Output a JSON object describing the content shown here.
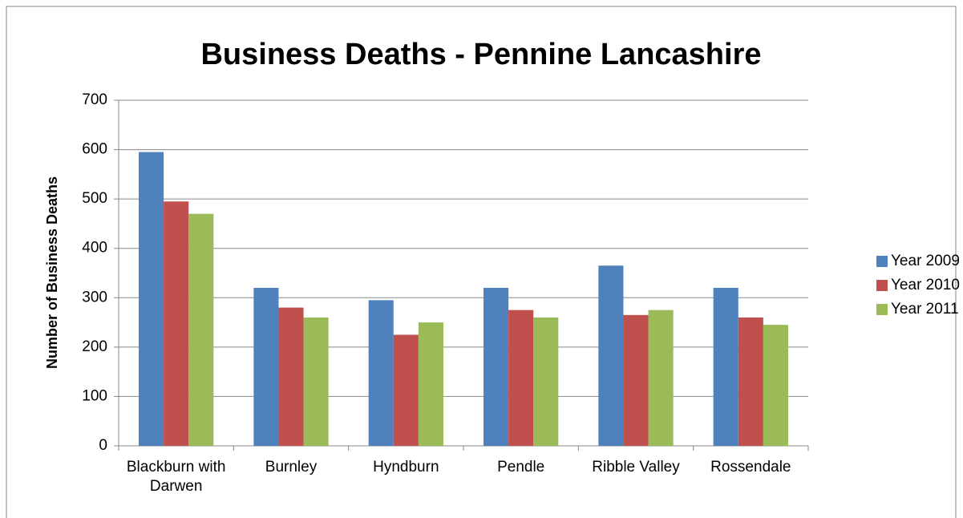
{
  "chart_data": {
    "type": "bar",
    "title": "Business Deaths - Pennine Lancashire",
    "y_label": "Number of Business Deaths",
    "categories": [
      "Blackburn with Darwen",
      "Burnley",
      "Hyndburn",
      "Pendle",
      "Ribble Valley",
      "Rossendale"
    ],
    "series": [
      {
        "name": "Year 2009",
        "color": "#4f81bd",
        "values": [
          595,
          320,
          295,
          320,
          365,
          320
        ]
      },
      {
        "name": "Year 2010",
        "color": "#c0504d",
        "values": [
          495,
          280,
          225,
          275,
          265,
          260
        ]
      },
      {
        "name": "Year 2011",
        "color": "#9bbb59",
        "values": [
          470,
          260,
          250,
          260,
          275,
          245
        ]
      }
    ],
    "ylim": [
      0,
      700
    ],
    "yticks": [
      0,
      100,
      200,
      300,
      400,
      500,
      600,
      700
    ],
    "grid": true,
    "legend": "right"
  }
}
